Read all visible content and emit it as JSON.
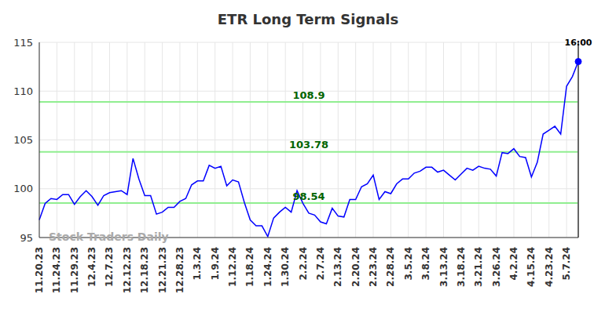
{
  "chart_data": {
    "type": "line",
    "title": "ETR Long Term Signals",
    "watermark": "Stock Traders Daily",
    "annotations": [
      {
        "text": "16:00"
      }
    ],
    "categories": [
      "11.20.23",
      null,
      null,
      "11.24.23",
      null,
      null,
      "11.29.23",
      null,
      null,
      "12.4.23",
      null,
      null,
      "12.7.23",
      null,
      null,
      "12.12.23",
      null,
      null,
      "12.18.23",
      null,
      null,
      "12.21.23",
      null,
      null,
      "12.28.23",
      null,
      null,
      "1.3.24",
      null,
      null,
      "1.9.24",
      null,
      null,
      "1.12.24",
      null,
      null,
      "1.18.24",
      null,
      null,
      "1.24.24",
      null,
      null,
      "1.30.24",
      null,
      null,
      "2.2.24",
      null,
      null,
      "2.7.24",
      null,
      null,
      "2.13.24",
      null,
      null,
      "2.20.24",
      null,
      null,
      "2.23.24",
      null,
      null,
      "2.28.24",
      null,
      null,
      "3.5.24",
      null,
      null,
      "3.8.24",
      null,
      null,
      "3.13.24",
      null,
      null,
      "3.18.24",
      null,
      null,
      "3.21.24",
      null,
      null,
      "3.26.24",
      null,
      null,
      "4.2.24",
      null,
      null,
      "4.15.24",
      null,
      null,
      "4.23.24",
      null,
      null,
      "5.7.24",
      null,
      null
    ],
    "values": [
      96.8,
      98.5,
      99.0,
      98.9,
      99.4,
      99.4,
      98.4,
      99.2,
      99.8,
      99.2,
      98.3,
      99.3,
      99.6,
      99.7,
      99.8,
      99.4,
      103.1,
      101.0,
      99.3,
      99.3,
      97.4,
      97.6,
      98.1,
      98.1,
      98.7,
      99.0,
      100.4,
      100.8,
      100.8,
      102.4,
      102.1,
      102.3,
      100.3,
      100.9,
      100.7,
      98.6,
      96.8,
      96.2,
      96.2,
      95.1,
      97.0,
      97.6,
      98.1,
      97.6,
      99.8,
      98.5,
      97.5,
      97.3,
      96.6,
      96.4,
      98.0,
      97.2,
      97.1,
      98.9,
      98.9,
      100.2,
      100.5,
      101.4,
      98.9,
      99.7,
      99.5,
      100.5,
      101.0,
      101.0,
      101.6,
      101.8,
      102.2,
      102.2,
      101.7,
      101.9,
      101.4,
      100.9,
      101.5,
      102.1,
      101.9,
      102.3,
      102.1,
      102.0,
      101.3,
      103.7,
      103.6,
      104.1,
      103.3,
      103.2,
      101.2,
      102.7,
      105.6,
      106.0,
      106.4,
      105.6,
      110.5,
      111.5,
      113.03
    ],
    "color": "#0000ff",
    "levels": [
      108.9,
      103.78,
      98.54
    ],
    "level_color": "#90ee90",
    "ylim": [
      95,
      115
    ],
    "yticks": [
      95,
      100,
      105,
      110,
      115
    ],
    "grid": true
  }
}
